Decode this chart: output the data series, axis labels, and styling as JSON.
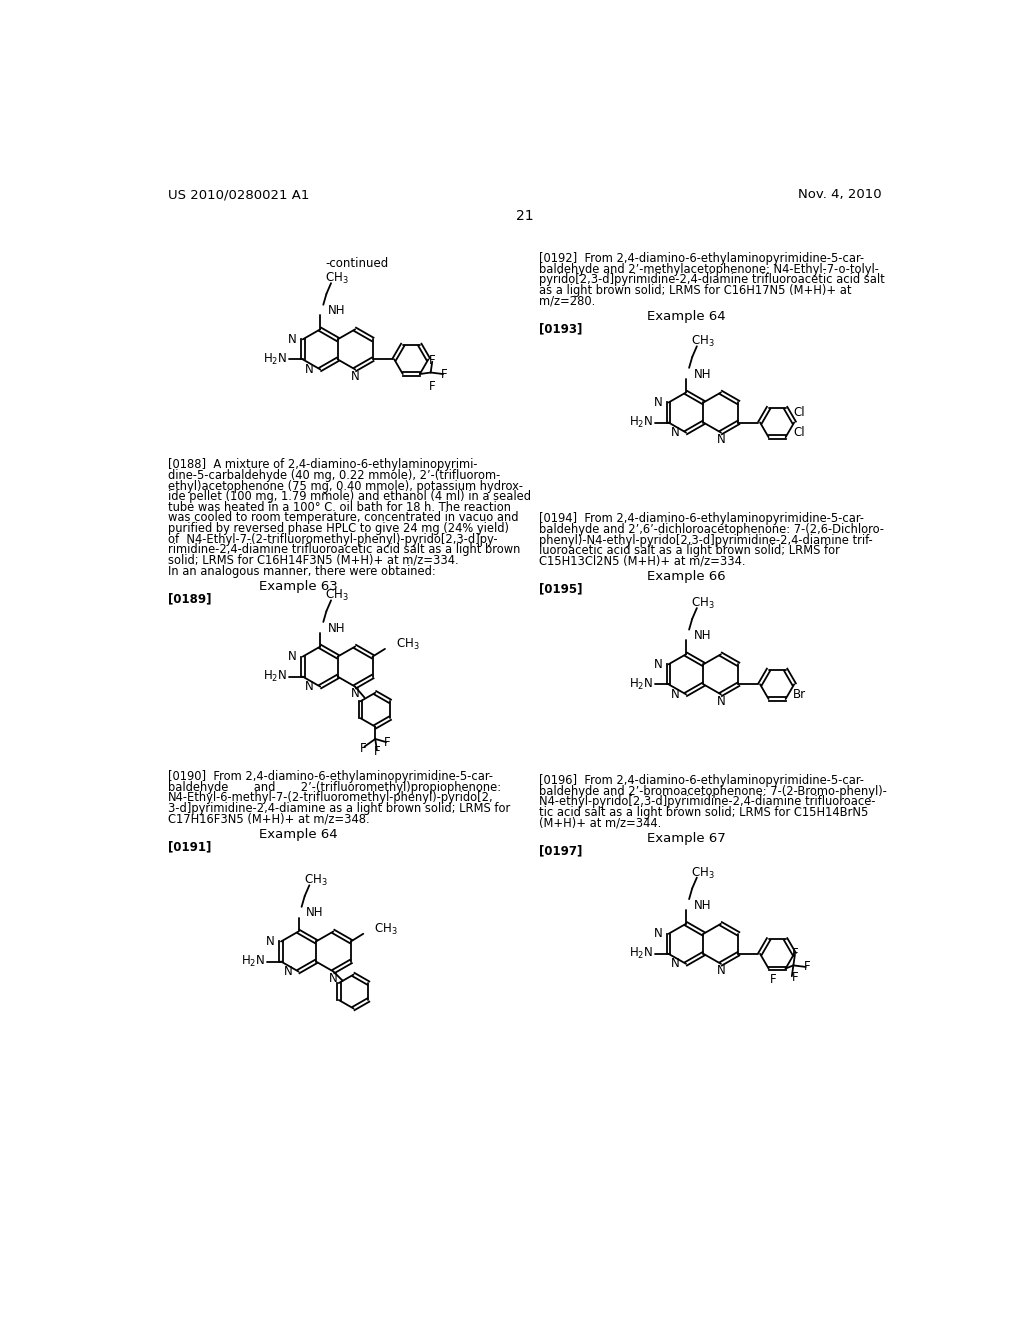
{
  "page_header_left": "US 2010/0280021 A1",
  "page_header_right": "Nov. 4, 2010",
  "page_number": "21",
  "background_color": "#ffffff",
  "text_color": "#000000",
  "continued_label": "-continued",
  "para0188": [
    "[0188]  A mixture of 2,4-diamino-6-ethylaminopyrimi-",
    "dine-5-carbaldehyde (40 mg, 0.22 mmole), 2’-(trifluorom-",
    "ethyl)acetophenone (75 mg, 0.40 mmole), potassium hydrox-",
    "ide pellet (100 mg, 1.79 mmole) and ethanol (4 ml) in a sealed",
    "tube was heated in a 100° C. oil bath for 18 h. The reaction",
    "was cooled to room temperature, concentrated in vacuo and",
    "purified by reversed phase HPLC to give 24 mg (24% yield)",
    "of  N4-Ethyl-7-(2-trifluoromethyl-phenyl)-pyrido[2,3-d]py-",
    "rimidine-2,4-diamine trifluoroacetic acid salt as a light brown",
    "solid; LRMS for C16H14F3N5 (M+H)+ at m/z=334.",
    "In an analogous manner, there were obtained:"
  ],
  "example63": "Example 63",
  "para0189_label": "[0189]",
  "para0190": [
    "[0190]  From 2,4-diamino-6-ethylaminopyrimidine-5-car-",
    "baldehyde       and       2’-(trifluoromethyl)propiophenone:",
    "N4-Ethyl-6-methyl-7-(2-trifluoromethyl-phenyl)-pyrido[2,",
    "3-d]pyrimidine-2,4-diamine as a light brown solid; LRMS for",
    "C17H16F3N5 (M+H)+ at m/z=348."
  ],
  "example64": "Example 64",
  "para0191_label": "[0191]",
  "para0192": [
    "[0192]  From 2,4-diamino-6-ethylaminopyrimidine-5-car-",
    "baldehyde and 2’-methylacetophenone: N4-Ethyl-7-o-tolyl-",
    "pyrido[2,3-d]pyrimidine-2,4-diamine trifluoroacetic acid salt",
    "as a light brown solid; LRMS for C16H17N5 (M+H)+ at",
    "m/z=280."
  ],
  "example64r": "Example 64",
  "para0193_label": "[0193]",
  "para0194": [
    "[0194]  From 2,4-diamino-6-ethylaminopyrimidine-5-car-",
    "baldehyde and 2’,6’-dichloroacetophenone: 7-(2,6-Dichloro-",
    "phenyl)-N4-ethyl-pyrido[2,3-d]pyrimidine-2,4-diamine trif-",
    "luoroacetic acid salt as a light brown solid; LRMS for",
    "C15H13Cl2N5 (M+H)+ at m/z=334."
  ],
  "example66": "Example 66",
  "para0195_label": "[0195]",
  "para0196": [
    "[0196]  From 2,4-diamino-6-ethylaminopyrimidine-5-car-",
    "baldehyde and 2’-bromoacetophenone: 7-(2-Bromo-phenyl)-",
    "N4-ethyl-pyrido[2,3-d]pyrimidine-2,4-diamine trifluoroace-",
    "tic acid salt as a light brown solid; LRMS for C15H14BrN5",
    "(M+H)+ at m/z=344."
  ],
  "example67": "Example 67",
  "para0197_label": "[0197]"
}
